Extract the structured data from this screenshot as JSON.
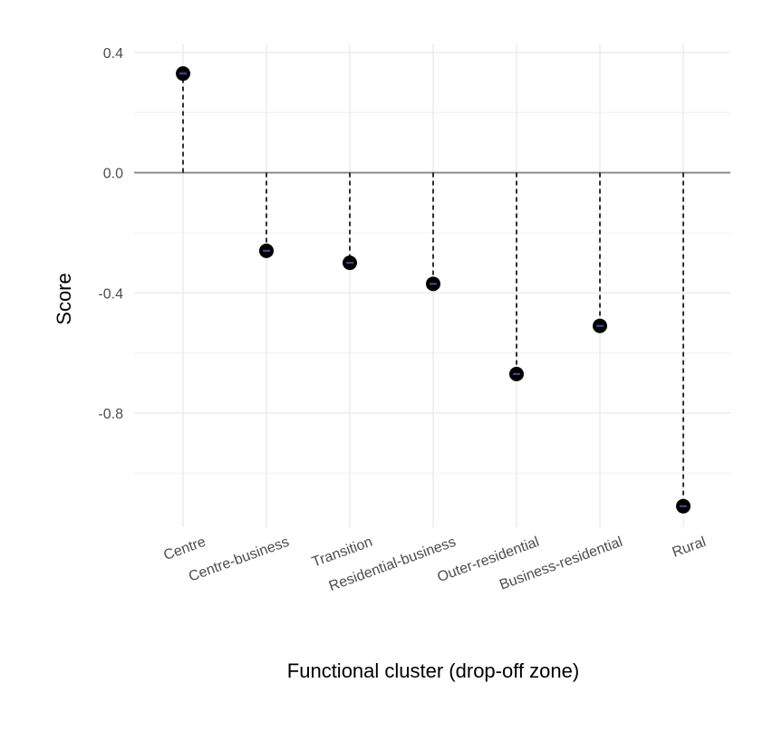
{
  "chart_data": {
    "type": "scatter",
    "subtype": "lollipop",
    "title": "",
    "xlabel": "Functional cluster (drop-off zone)",
    "ylabel": "Score",
    "categories": [
      "Centre",
      "Centre-business",
      "Transition",
      "Residential-business",
      "Outer-residential",
      "Business-residential",
      "Rural"
    ],
    "values": [
      0.33,
      -0.26,
      -0.3,
      -0.37,
      -0.67,
      -0.51,
      -1.11
    ],
    "ylim": [
      -1.18,
      0.43
    ],
    "yticks": [
      0.4,
      0.0,
      -0.4,
      -0.8
    ],
    "ytick_labels": [
      "0.4",
      "0.0",
      "-0.4",
      "-0.8"
    ],
    "grid": true,
    "legend": "none",
    "colors": {
      "point": "#000000",
      "point_highlight": "#3b4a8c",
      "stem": "#000000",
      "zero_line": "#8c8c8c",
      "grid_major": "#ebebeb",
      "grid_minor": "#f3f3f3"
    }
  }
}
